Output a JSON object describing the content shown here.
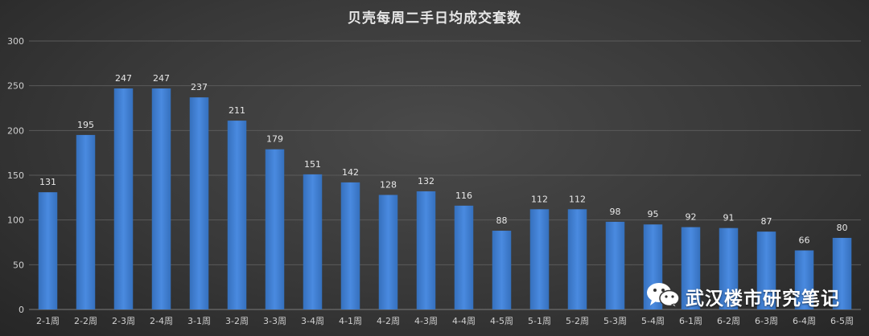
{
  "chart_data": {
    "type": "bar",
    "title": "贝壳每周二手日均成交套数",
    "categories": [
      "2-1周",
      "2-2周",
      "2-3周",
      "2-4周",
      "3-1周",
      "3-2周",
      "3-3周",
      "3-4周",
      "4-1周",
      "4-2周",
      "4-3周",
      "4-4周",
      "4-5周",
      "5-1周",
      "5-2周",
      "5-3周",
      "5-4周",
      "6-1周",
      "6-2周",
      "6-3周",
      "6-4周",
      "6-5周"
    ],
    "values": [
      131,
      195,
      247,
      247,
      237,
      211,
      179,
      151,
      142,
      128,
      132,
      116,
      88,
      112,
      112,
      98,
      95,
      92,
      91,
      87,
      66,
      80
    ],
    "ylim": [
      0,
      300
    ],
    "yticks": [
      0,
      50,
      100,
      150,
      200,
      250,
      300
    ],
    "xlabel": "",
    "ylabel": "",
    "grid": true,
    "data_labels": true,
    "bar_color": "#3f7fd0"
  },
  "watermark": {
    "text": "武汉楼市研究笔记",
    "icon": "wechat-icon"
  },
  "colors": {
    "gridline": "#5a5a5a",
    "axis_text": "#d0d0d0",
    "label_text": "#e8e8e8"
  }
}
